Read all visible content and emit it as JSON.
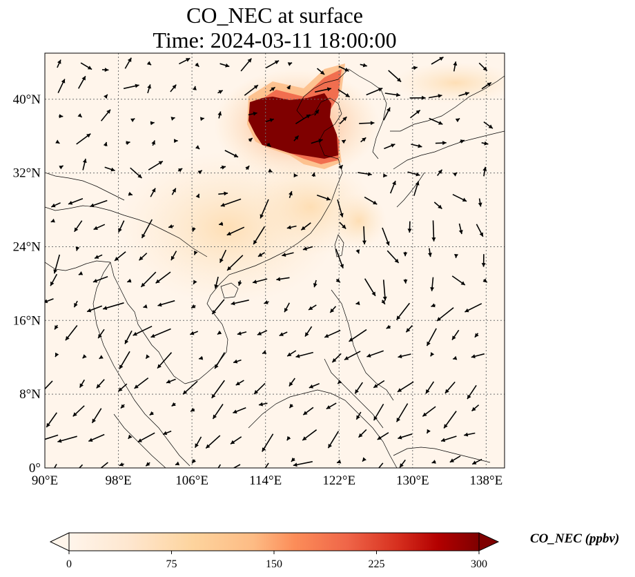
{
  "title_line1": "CO_NEC at surface",
  "title_line2": "Time: 2024-03-11 18:00:00",
  "map": {
    "lon_range": [
      90,
      140
    ],
    "lat_range": [
      0,
      45
    ],
    "lon_ticks": [
      {
        "value": 90,
        "label": "90°E"
      },
      {
        "value": 98,
        "label": "98°E"
      },
      {
        "value": 106,
        "label": "106°E"
      },
      {
        "value": 114,
        "label": "114°E"
      },
      {
        "value": 122,
        "label": "122°E"
      },
      {
        "value": 130,
        "label": "130°E"
      },
      {
        "value": 138,
        "label": "138°E"
      }
    ],
    "lat_ticks": [
      {
        "value": 0,
        "label": "0°"
      },
      {
        "value": 8,
        "label": "8°N"
      },
      {
        "value": 16,
        "label": "16°N"
      },
      {
        "value": 24,
        "label": "24°N"
      },
      {
        "value": 32,
        "label": "32°N"
      },
      {
        "value": 40,
        "label": "40°N"
      }
    ],
    "gridlines": true,
    "background_color": "#fff5eb",
    "high_color": "#7f0000"
  },
  "colorbar": {
    "label": "CO_NEC (ppbv)",
    "min": 0,
    "max": 300,
    "ticks": [
      {
        "value": 0,
        "label": "0"
      },
      {
        "value": 75,
        "label": "75"
      },
      {
        "value": 150,
        "label": "150"
      },
      {
        "value": 225,
        "label": "225"
      },
      {
        "value": 300,
        "label": "300"
      }
    ],
    "colors": [
      "#fff5eb",
      "#fdd49e",
      "#fdbb84",
      "#fc8d59",
      "#ef6548",
      "#d7301f",
      "#b30000",
      "#7f0000"
    ]
  }
}
